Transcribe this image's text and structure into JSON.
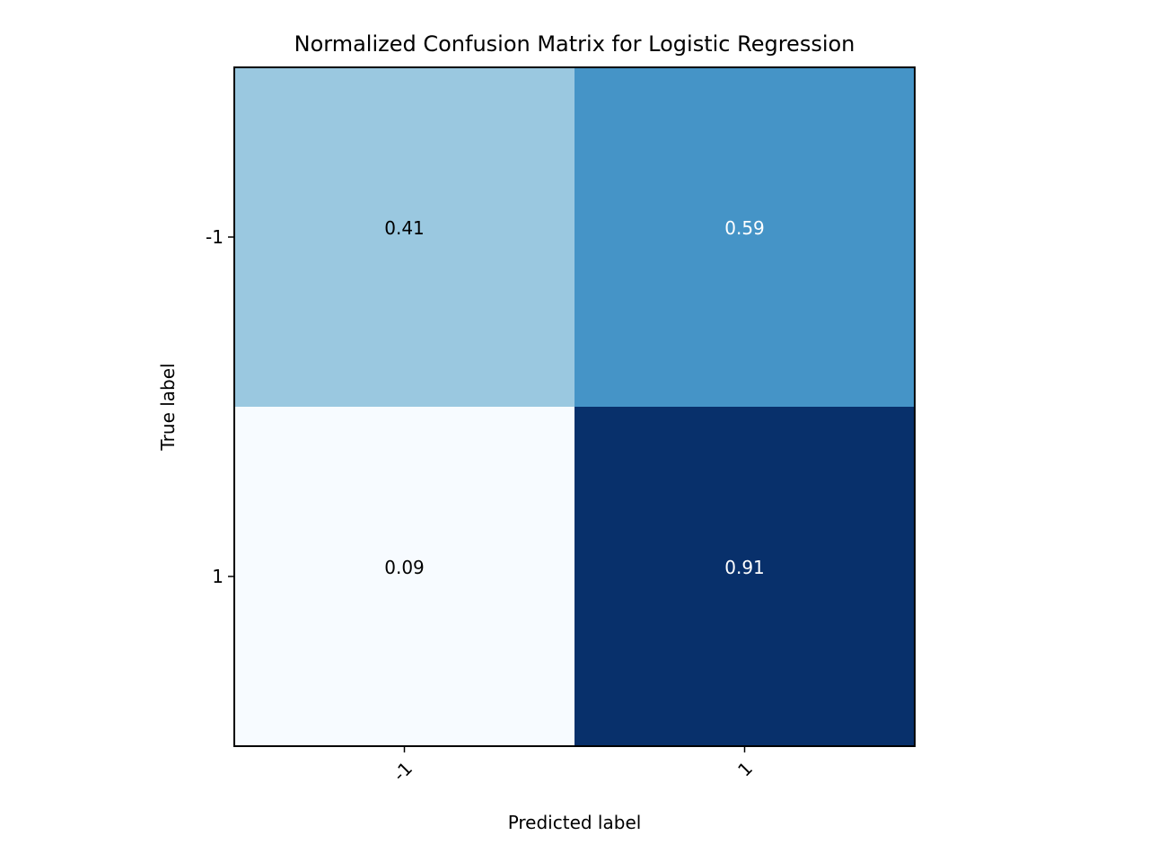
{
  "chart_data": {
    "type": "heatmap",
    "title": "Normalized Confusion Matrix for Logistic Regression",
    "xlabel": "Predicted label",
    "ylabel": "True label",
    "x_tick_labels": [
      "-1",
      "1"
    ],
    "y_tick_labels": [
      "-1",
      "1"
    ],
    "values": [
      [
        0.41,
        0.59
      ],
      [
        0.09,
        0.91
      ]
    ],
    "cell_labels": [
      [
        "0.41",
        "0.59"
      ],
      [
        "0.09",
        "0.91"
      ]
    ],
    "colormap": "Blues",
    "value_range": [
      0.09,
      0.91
    ],
    "grid": false,
    "colors": {
      "cells": [
        [
          "#9ac8e0",
          "#4594c7"
        ],
        [
          "#f7fbff",
          "#08306b"
        ]
      ],
      "text_dark": "#000000",
      "text_light": "#ffffff",
      "frame": "#000000"
    }
  }
}
